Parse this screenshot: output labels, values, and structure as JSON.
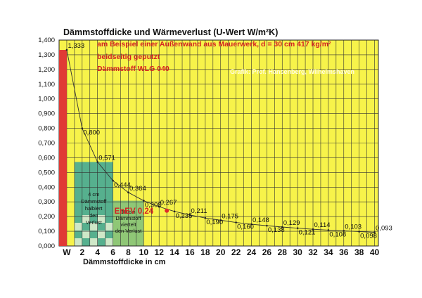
{
  "chart_data": {
    "type": "line",
    "title": "Dämmstoffdicke und Wärmeverlust (U-Wert  W/m²K)",
    "xlabel": "Dämmstoffdicke in cm",
    "ylabel": "",
    "x_ticks": [
      "W",
      "2",
      "4",
      "6",
      "8",
      "10",
      "12",
      "14",
      "16",
      "18",
      "20",
      "22",
      "24",
      "26",
      "28",
      "30",
      "32",
      "34",
      "36",
      "38",
      "40"
    ],
    "y_ticks": [
      "0,000",
      "0,100",
      "0,200",
      "0,300",
      "0,400",
      "0,500",
      "0,600",
      "0,700",
      "0,800",
      "0,900",
      "1,000",
      "1,100",
      "1,200",
      "1,300",
      "1,400"
    ],
    "xlim": [
      -1,
      40.5
    ],
    "ylim": [
      0,
      1.4
    ],
    "grid": true,
    "series": [
      {
        "x": [
          0,
          2,
          4,
          6,
          8,
          10,
          12,
          14,
          16,
          18,
          20,
          22,
          24,
          26,
          28,
          30,
          32,
          34,
          36,
          38,
          40
        ],
        "values": [
          1.333,
          0.8,
          0.571,
          0.444,
          0.364,
          0.308,
          0.267,
          0.235,
          0.211,
          0.19,
          0.175,
          0.16,
          0.148,
          0.138,
          0.129,
          0.121,
          0.114,
          0.108,
          0.103,
          0.098,
          0.093
        ],
        "labels": [
          "1,333",
          "0,800",
          "0,571",
          "0,444",
          "0,364",
          "0,308",
          "0,267",
          "0,235",
          "0,211",
          "0,190",
          "0,175",
          "0,160",
          "0,148",
          "0,138",
          "0,129",
          "0,121",
          "0,114",
          "0,108",
          "0,103",
          "0,098",
          "0,093"
        ]
      }
    ],
    "wall_bar": {
      "x": 0,
      "value": 1.333,
      "color": "#e03a35"
    },
    "annotations": {
      "info_lines": [
        "am Beispiel einer Außenwand aus Mauerwerk,  d = 30 cm   417 kg/m²",
        "beidseitig geputzt",
        "Dämmstoff WLG 040"
      ],
      "credit": "Grafik: Prof. Hansenberg, Wilhelmshaven",
      "box_4cm": [
        "4 cm",
        "Dämmstoff",
        "halbiert",
        "den",
        "Verlust"
      ],
      "box_10cm": [
        "10 cm",
        "Dämmstoff",
        "viertelt",
        "den Verlust"
      ],
      "enev_label": "EnEV 0,24",
      "enev_value": 0.24,
      "enev_x": 13
    },
    "colors": {
      "plot_bg": "#f7f34a",
      "grid": "#333333",
      "wall_bar": "#e03a35",
      "teal_block": "#3aa39a",
      "teal_light": "#cfe8c8",
      "line": "#333333",
      "enev": "#e02a2a"
    }
  }
}
